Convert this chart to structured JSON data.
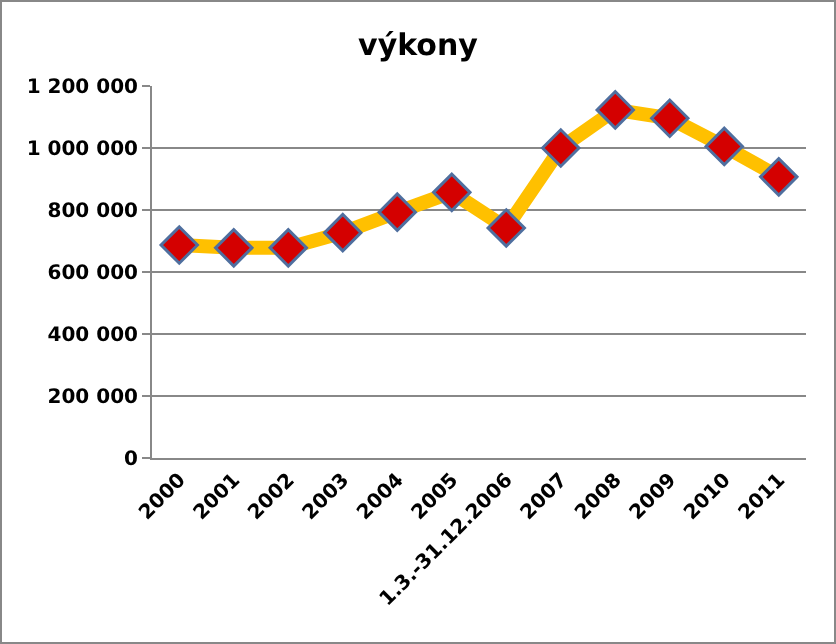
{
  "chart_data": {
    "type": "line",
    "title": "výkony",
    "categories": [
      "2000",
      "2001",
      "2002",
      "2003",
      "2004",
      "2005",
      "1.3.-31.12.2006",
      "2007",
      "2008",
      "2009",
      "2010",
      "2011"
    ],
    "series": [
      {
        "color": "#ffc000",
        "values": [
          687000,
          678000,
          678000,
          727000,
          793000,
          857000,
          742000,
          1000000,
          1123000,
          1096000,
          1005000,
          907000
        ]
      }
    ],
    "ylim": [
      0,
      1200000
    ],
    "yticks": [
      0,
      {
        "value": 200000,
        "label": "200 000"
      },
      {
        "value": 400000,
        "label": "400 000"
      },
      {
        "value": 600000,
        "label": "600 000"
      },
      {
        "value": 800000,
        "label": "800 000"
      },
      {
        "value": 1000000,
        "label": "1 000 000"
      },
      {
        "value": 1200000,
        "label": "1 200 000"
      }
    ],
    "grid": "y",
    "marker": "diamond",
    "line_style": "solid"
  }
}
